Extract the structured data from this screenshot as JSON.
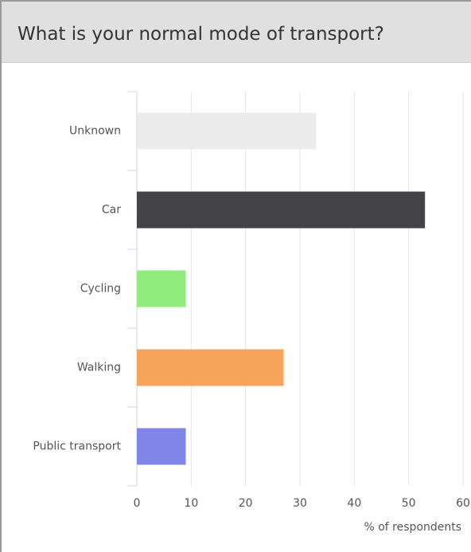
{
  "chart_data": {
    "type": "bar",
    "orientation": "horizontal",
    "title": "What is your normal mode of transport?",
    "x_label": "% of respondents",
    "categories": [
      "Unknown",
      "Car",
      "Cycling",
      "Walking",
      "Public transport"
    ],
    "values": [
      33,
      53,
      9,
      27,
      9
    ],
    "colors": [
      "#ececec",
      "#434348",
      "#90ed7d",
      "#f7a35c",
      "#8085e9"
    ],
    "xlim": [
      0,
      60
    ],
    "xticks": [
      0,
      10,
      20,
      30,
      40,
      50,
      60
    ],
    "grid": true
  }
}
